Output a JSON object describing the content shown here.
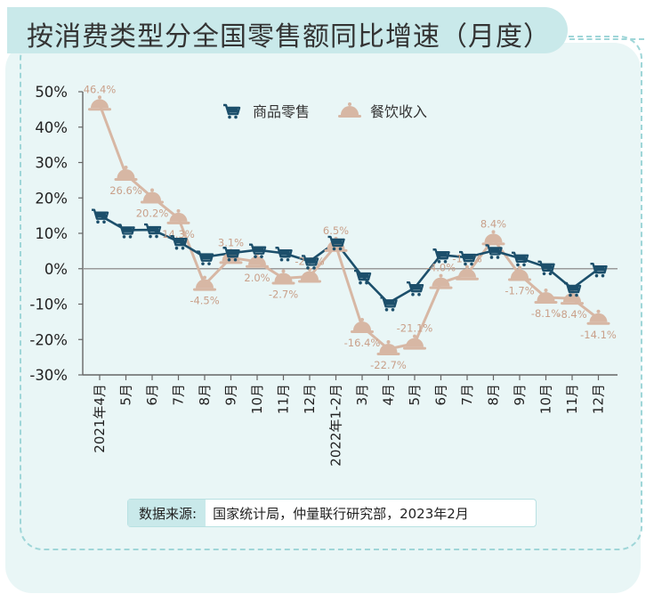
{
  "page": {
    "title": "按消费类型分全国零售额同比增速（月度）",
    "source_label": "数据来源:",
    "source_text": "国家统计局，仲量联行研究部，2023年2月"
  },
  "colors": {
    "goods": "#1c4f6b",
    "catering": "#d7b7a4",
    "catering_label": "#c9a08a",
    "frame": "#e9f6f6",
    "accent": "#9fd6d8"
  },
  "chart_data": {
    "type": "line",
    "categories": [
      "2021年4月",
      "5月",
      "6月",
      "7月",
      "8月",
      "9月",
      "10月",
      "11月",
      "12月",
      "2022年1-2月",
      "3月",
      "4月",
      "5月",
      "6月",
      "7月",
      "8月",
      "9月",
      "10月",
      "11月",
      "12月"
    ],
    "series": [
      {
        "name": "商品零售",
        "icon": "shopping-cart-icon",
        "values": [
          15.1,
          10.9,
          11.0,
          7.7,
          3.3,
          4.4,
          5.3,
          4.4,
          2.1,
          7.5,
          -2.1,
          -9.7,
          -5.4,
          3.9,
          3.2,
          5.1,
          3.0,
          0.5,
          -5.6,
          -0.1
        ]
      },
      {
        "name": "餐饮收入",
        "icon": "serving-cloche-icon",
        "values": [
          46.4,
          26.6,
          20.2,
          14.3,
          -4.5,
          3.1,
          2.0,
          -2.7,
          -2.2,
          6.5,
          -16.4,
          -22.7,
          -21.1,
          -4.0,
          -1.5,
          8.4,
          -1.7,
          -8.1,
          -8.4,
          -14.1
        ],
        "labels": [
          "46.4%",
          "26.6%",
          "20.2%",
          "14.3%",
          "-4.5%",
          "3.1%",
          "2.0%",
          "-2.7%",
          "-2.2%",
          "6.5%",
          "-16.4%",
          "-22.7%",
          "-21.1%",
          "-4.0%",
          "-1.5%",
          "8.4%",
          "-1.7%",
          "-8.1%",
          "-8.4%",
          "-14.1%"
        ]
      }
    ],
    "yticks": [
      "50%",
      "40%",
      "30%",
      "20%",
      "10%",
      "0%",
      "-10%",
      "-20%",
      "-30%"
    ],
    "ylim": [
      -30,
      50
    ],
    "legend": "top-center"
  }
}
